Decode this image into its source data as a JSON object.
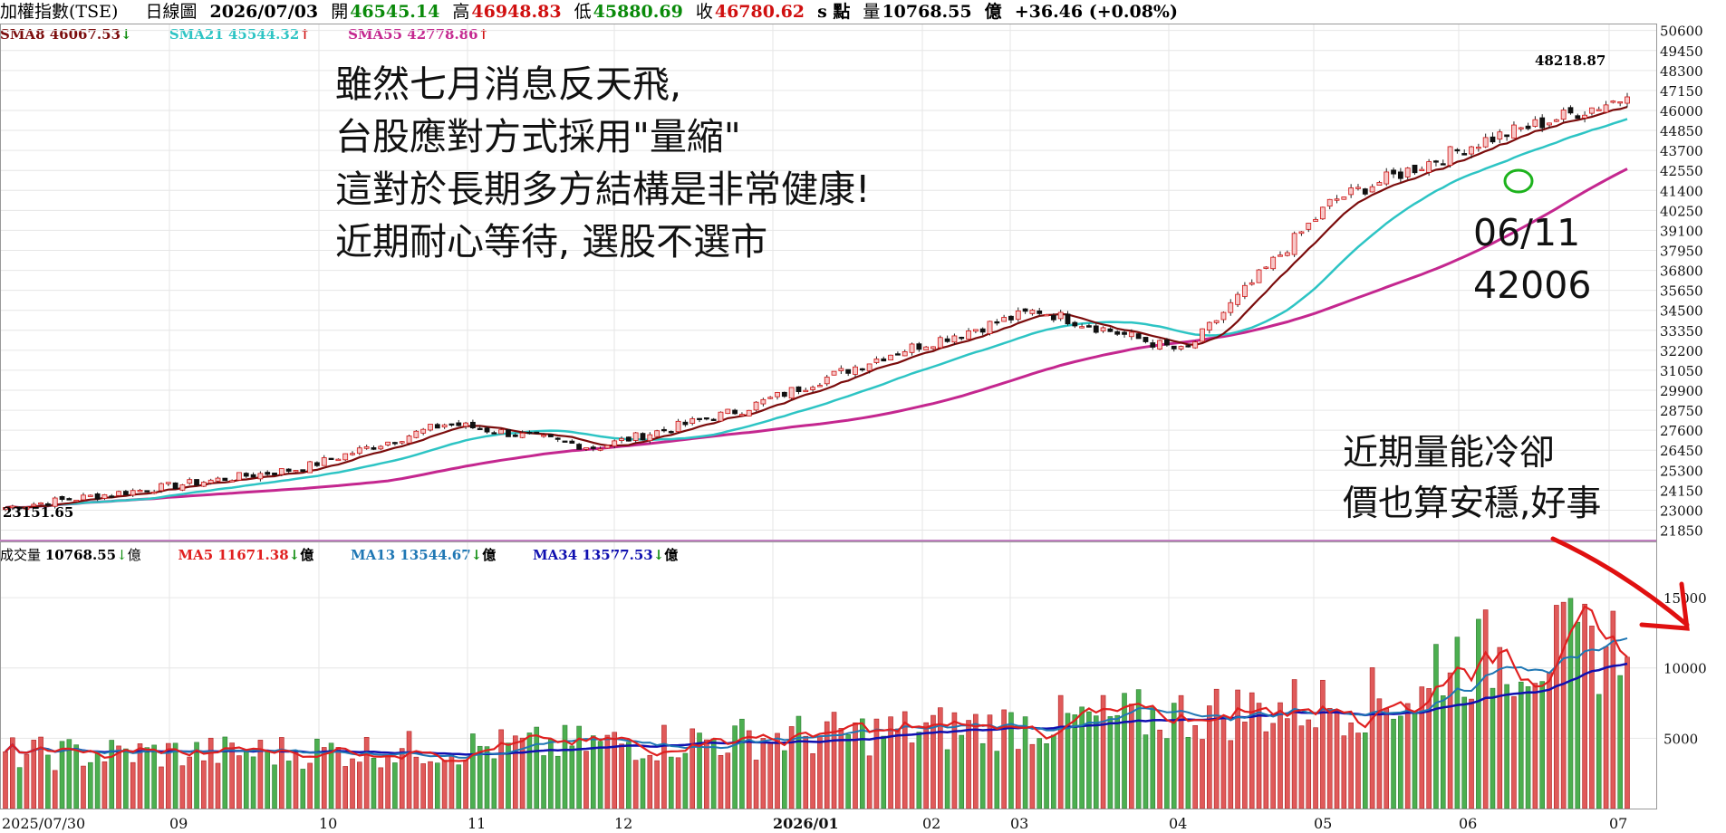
{
  "header": {
    "symbol": "加權指數(TSE)",
    "period": "日線圖",
    "date": "2026/07/03",
    "open_label": "開",
    "open": "46545.14",
    "high_label": "高",
    "high": "46948.83",
    "low_label": "低",
    "low": "45880.69",
    "close_label": "收",
    "close": "46780.62",
    "unit_s": "s 點",
    "vol_label": "量",
    "vol": "10768.55",
    "vol_unit": "億",
    "change": "+36.46 (+0.08%)"
  },
  "price_ma": [
    {
      "label": "SMA8 46067.53",
      "arrow": "↓",
      "color": "#7b0c0c"
    },
    {
      "label": "SMA21 45544.32",
      "arrow": "↑",
      "color": "#2dc4c4"
    },
    {
      "label": "SMA55 42778.86",
      "arrow": "↑",
      "color": "#c4278f"
    }
  ],
  "vol_ma": [
    {
      "label": "成交量",
      "value": "10768.55",
      "arrow": "↓",
      "unit": "億",
      "color": "#000000"
    },
    {
      "label": "MA5",
      "value": "11671.38",
      "arrow": "↓",
      "unit": "億",
      "color": "#e02020"
    },
    {
      "label": "MA13",
      "value": "13544.67",
      "arrow": "↓",
      "unit": "億",
      "color": "#1f77b4"
    },
    {
      "label": "MA34",
      "value": "13577.53",
      "arrow": "↓",
      "unit": "億",
      "color": "#1010b0"
    }
  ],
  "annotations": {
    "main_text": [
      "雖然七月消息反天飛,",
      "台股應對方式採用\"量縮\"",
      "這對於長期多方結構是非常健康!",
      "近期耐心等待, 選股不選市"
    ],
    "point_date": "06/11",
    "point_value": "42006",
    "vol_text": [
      "近期量能冷卻",
      "價也算安穩,好事"
    ],
    "high_label": "48218.87",
    "low_label": "23151.65"
  },
  "chart_data": [
    {
      "type": "candlestick",
      "title": "加權指數(TSE) 日線圖",
      "x_ticks": [
        "2025/07/30",
        "09",
        "10",
        "11",
        "12",
        "2026/01",
        "02",
        "03",
        "04",
        "05",
        "06",
        "07"
      ],
      "y_ticks": [
        50600,
        49450,
        48300,
        47150,
        46000,
        44850,
        43700,
        42550,
        41400,
        40250,
        39100,
        37950,
        36800,
        35650,
        34500,
        33350,
        32200,
        31050,
        29900,
        28750,
        27600,
        26450,
        25300,
        24150,
        23000,
        21850
      ],
      "ylim": [
        21200,
        51000
      ],
      "close_keypoints": {
        "months": [
          "2025/07/30",
          "09",
          "10",
          "11",
          "12",
          "2026/01",
          "02",
          "03",
          "04",
          "05",
          "06",
          "07"
        ],
        "closes": [
          23151.65,
          24250,
          25400,
          28000,
          26600,
          28800,
          32000,
          34500,
          32100,
          40800,
          44200,
          46780.62
        ]
      },
      "series": [
        {
          "name": "SMA8",
          "last": 46067.53
        },
        {
          "name": "SMA21",
          "last": 45544.32
        },
        {
          "name": "SMA55",
          "last": 42778.86
        }
      ],
      "annotations": [
        {
          "date": "06/11",
          "value": 42006
        },
        {
          "value": 48218.87
        },
        {
          "value": 23151.65
        }
      ]
    },
    {
      "type": "bar",
      "title": "成交量",
      "y_ticks": [
        5000,
        10000,
        15000
      ],
      "ylim": [
        0,
        19000
      ],
      "last_volume": 10768.55,
      "series": [
        {
          "name": "MA5",
          "last": 11671.38
        },
        {
          "name": "MA13",
          "last": 13544.67
        },
        {
          "name": "MA34",
          "last": 13577.53
        }
      ]
    }
  ]
}
